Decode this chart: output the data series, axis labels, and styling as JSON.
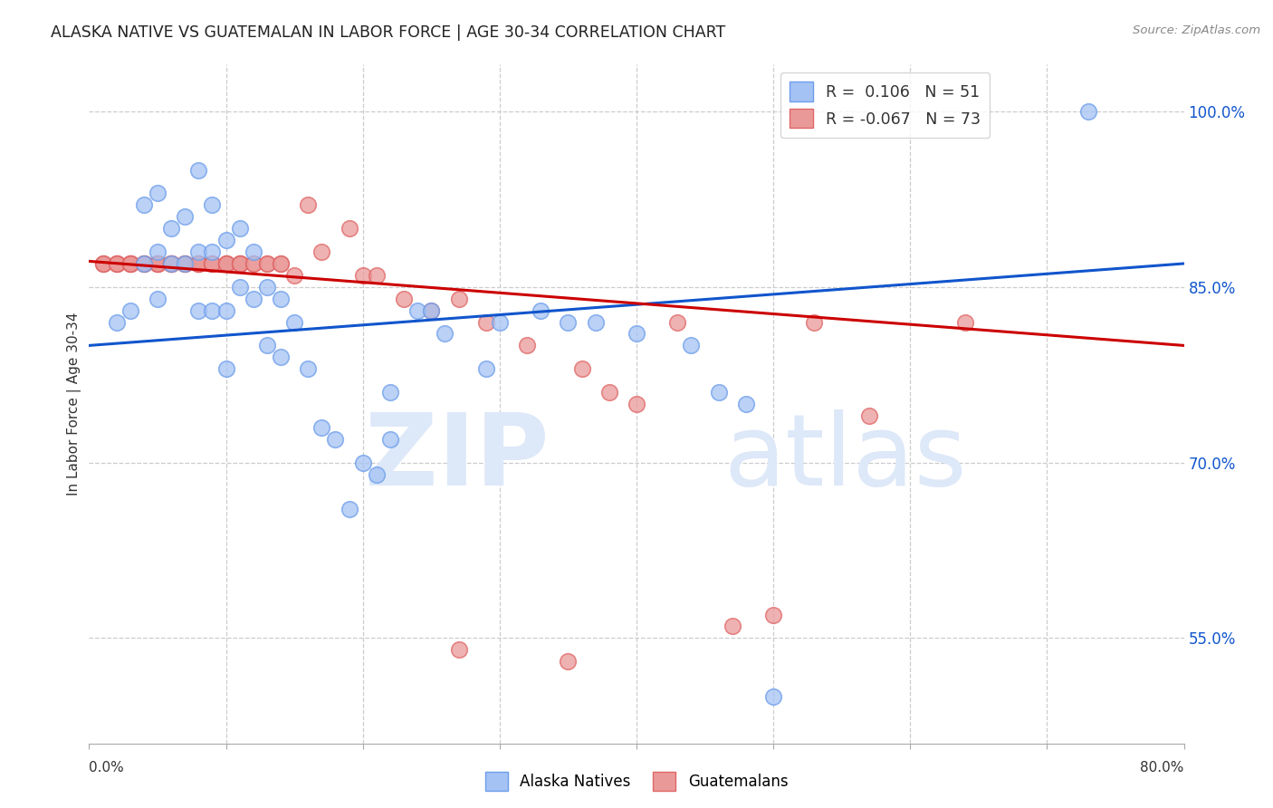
{
  "title": "ALASKA NATIVE VS GUATEMALAN IN LABOR FORCE | AGE 30-34 CORRELATION CHART",
  "source": "Source: ZipAtlas.com",
  "ylabel": "In Labor Force | Age 30-34",
  "ytick_vals": [
    0.55,
    0.7,
    0.85,
    1.0
  ],
  "ytick_labels": [
    "55.0%",
    "70.0%",
    "85.0%",
    "100.0%"
  ],
  "xlim": [
    0.0,
    0.8
  ],
  "ylim": [
    0.46,
    1.04
  ],
  "legend_blue_label": "R =  0.106   N = 51",
  "legend_pink_label": "R = -0.067   N = 73",
  "blue_color": "#a4c2f4",
  "pink_color": "#ea9999",
  "blue_edge_color": "#6d9eeb",
  "pink_edge_color": "#e06666",
  "line_blue_color": "#1155cc",
  "line_pink_color": "#cc0000",
  "blue_line_x": [
    0.0,
    0.8
  ],
  "blue_line_y": [
    0.8,
    0.87
  ],
  "pink_line_x": [
    0.0,
    0.8
  ],
  "pink_line_y": [
    0.872,
    0.8
  ],
  "blue_scatter_x": [
    0.02,
    0.03,
    0.04,
    0.04,
    0.05,
    0.05,
    0.05,
    0.06,
    0.06,
    0.07,
    0.07,
    0.08,
    0.08,
    0.08,
    0.09,
    0.09,
    0.09,
    0.1,
    0.1,
    0.1,
    0.11,
    0.11,
    0.12,
    0.12,
    0.13,
    0.13,
    0.14,
    0.14,
    0.15,
    0.16,
    0.17,
    0.18,
    0.19,
    0.2,
    0.21,
    0.22,
    0.22,
    0.24,
    0.25,
    0.26,
    0.29,
    0.3,
    0.33,
    0.35,
    0.37,
    0.4,
    0.44,
    0.46,
    0.48,
    0.73,
    0.5
  ],
  "blue_scatter_y": [
    0.82,
    0.83,
    0.92,
    0.87,
    0.93,
    0.88,
    0.84,
    0.9,
    0.87,
    0.91,
    0.87,
    0.95,
    0.88,
    0.83,
    0.92,
    0.88,
    0.83,
    0.89,
    0.83,
    0.78,
    0.9,
    0.85,
    0.88,
    0.84,
    0.85,
    0.8,
    0.84,
    0.79,
    0.82,
    0.78,
    0.73,
    0.72,
    0.66,
    0.7,
    0.69,
    0.76,
    0.72,
    0.83,
    0.83,
    0.81,
    0.78,
    0.82,
    0.83,
    0.82,
    0.82,
    0.81,
    0.8,
    0.76,
    0.75,
    1.0,
    0.5
  ],
  "pink_scatter_x": [
    0.01,
    0.01,
    0.01,
    0.02,
    0.02,
    0.02,
    0.02,
    0.03,
    0.03,
    0.03,
    0.03,
    0.03,
    0.04,
    0.04,
    0.04,
    0.04,
    0.05,
    0.05,
    0.05,
    0.05,
    0.05,
    0.06,
    0.06,
    0.06,
    0.06,
    0.06,
    0.07,
    0.07,
    0.07,
    0.07,
    0.08,
    0.08,
    0.08,
    0.08,
    0.09,
    0.09,
    0.09,
    0.1,
    0.1,
    0.1,
    0.1,
    0.11,
    0.11,
    0.11,
    0.11,
    0.12,
    0.12,
    0.13,
    0.13,
    0.14,
    0.14,
    0.15,
    0.16,
    0.17,
    0.19,
    0.2,
    0.21,
    0.23,
    0.25,
    0.27,
    0.29,
    0.32,
    0.36,
    0.38,
    0.4,
    0.43,
    0.47,
    0.5,
    0.53,
    0.57,
    0.64,
    0.27,
    0.35
  ],
  "pink_scatter_y": [
    0.87,
    0.87,
    0.87,
    0.87,
    0.87,
    0.87,
    0.87,
    0.87,
    0.87,
    0.87,
    0.87,
    0.87,
    0.87,
    0.87,
    0.87,
    0.87,
    0.87,
    0.87,
    0.87,
    0.87,
    0.87,
    0.87,
    0.87,
    0.87,
    0.87,
    0.87,
    0.87,
    0.87,
    0.87,
    0.87,
    0.87,
    0.87,
    0.87,
    0.87,
    0.87,
    0.87,
    0.87,
    0.87,
    0.87,
    0.87,
    0.87,
    0.87,
    0.87,
    0.87,
    0.87,
    0.87,
    0.87,
    0.87,
    0.87,
    0.87,
    0.87,
    0.86,
    0.92,
    0.88,
    0.9,
    0.86,
    0.86,
    0.84,
    0.83,
    0.84,
    0.82,
    0.8,
    0.78,
    0.76,
    0.75,
    0.82,
    0.56,
    0.57,
    0.82,
    0.74,
    0.82,
    0.54,
    0.53
  ]
}
